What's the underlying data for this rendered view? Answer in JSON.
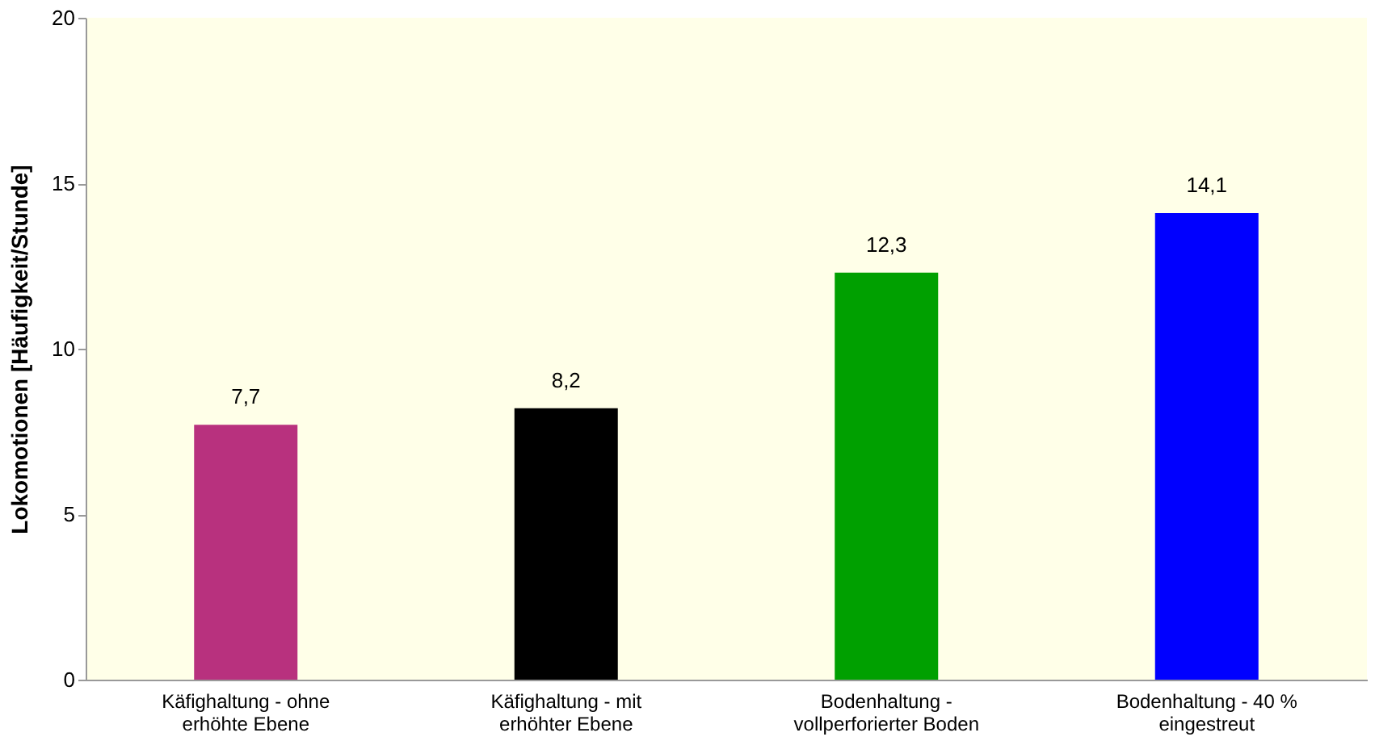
{
  "chart_data": {
    "type": "bar",
    "ylabel": "Lokomotionen [Häufigkeit/Stunde]",
    "categories": [
      "Käfighaltung - ohne erhöhte Ebene",
      "Käfighaltung - mit erhöhter Ebene",
      "Bodenhaltung - vollperforierter Boden",
      "Bodenhaltung - 40 % eingestreut"
    ],
    "values": [
      7.7,
      8.2,
      12.3,
      14.1
    ],
    "value_labels": [
      "7,7",
      "8,2",
      "12,3",
      "14,1"
    ],
    "colors": [
      "#b8317e",
      "#000000",
      "#00a000",
      "#0000ff"
    ],
    "ylim": [
      0,
      20
    ],
    "yticks": [
      0,
      5,
      10,
      15,
      20
    ],
    "grid": false
  }
}
